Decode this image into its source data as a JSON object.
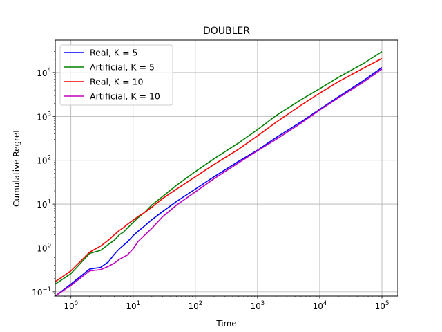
{
  "chart_data": {
    "type": "line",
    "title": "DOUBLER",
    "xlabel": "Time",
    "ylabel": "Cumulative Regret",
    "xscale": "log",
    "yscale": "log",
    "xlim": [
      0.56,
      180000
    ],
    "ylim": [
      0.08,
      55000
    ],
    "grid": true,
    "legend_position": "top-left",
    "x_ticks": [
      {
        "value": 1,
        "base": "10",
        "exp": "0"
      },
      {
        "value": 10,
        "base": "10",
        "exp": "1"
      },
      {
        "value": 100,
        "base": "10",
        "exp": "2"
      },
      {
        "value": 1000,
        "base": "10",
        "exp": "3"
      },
      {
        "value": 10000,
        "base": "10",
        "exp": "4"
      },
      {
        "value": 100000,
        "base": "10",
        "exp": "5"
      }
    ],
    "y_ticks": [
      {
        "value": 0.1,
        "base": "10",
        "exp": "−1"
      },
      {
        "value": 1,
        "base": "10",
        "exp": "0"
      },
      {
        "value": 10,
        "base": "10",
        "exp": "1"
      },
      {
        "value": 100,
        "base": "10",
        "exp": "2"
      },
      {
        "value": 1000,
        "base": "10",
        "exp": "3"
      },
      {
        "value": 10000,
        "base": "10",
        "exp": "4"
      }
    ],
    "series": [
      {
        "name": "Real, K = 5",
        "color": "#0000ff",
        "x": [
          0.56,
          1,
          2,
          3,
          4,
          5,
          6,
          7,
          8,
          10,
          12,
          15,
          20,
          30,
          50,
          100,
          200,
          500,
          1000,
          2000,
          5000,
          10000,
          20000,
          50000,
          100000
        ],
        "y": [
          0.08,
          0.15,
          0.33,
          0.36,
          0.48,
          0.72,
          0.95,
          1.15,
          1.35,
          1.9,
          2.4,
          3.1,
          4.4,
          6.8,
          11.5,
          22,
          42,
          95,
          170,
          330,
          750,
          1450,
          2800,
          6500,
          13000
        ]
      },
      {
        "name": "Artificial, K = 5",
        "color": "#008000",
        "x": [
          0.56,
          1,
          2,
          3,
          4,
          5,
          6,
          7,
          8,
          10,
          12,
          15,
          20,
          30,
          50,
          100,
          200,
          500,
          1000,
          2000,
          5000,
          10000,
          20000,
          50000,
          100000
        ],
        "y": [
          0.15,
          0.26,
          0.75,
          0.88,
          1.2,
          1.5,
          2.0,
          2.3,
          2.8,
          3.8,
          4.9,
          6.3,
          9.5,
          15,
          27,
          55,
          108,
          250,
          500,
          1050,
          2400,
          4300,
          7800,
          16000,
          30000
        ]
      },
      {
        "name": "Real, K = 10",
        "color": "#ff0000",
        "x": [
          0.56,
          1,
          2,
          3,
          4,
          5,
          6,
          7,
          8,
          10,
          12,
          15,
          20,
          30,
          50,
          100,
          200,
          500,
          1000,
          2000,
          5000,
          10000,
          20000,
          50000,
          100000
        ],
        "y": [
          0.17,
          0.3,
          0.8,
          1.1,
          1.5,
          2.0,
          2.5,
          2.9,
          3.4,
          4.3,
          5.2,
          6.3,
          8.5,
          13.5,
          22,
          42,
          80,
          180,
          360,
          740,
          1800,
          3400,
          6200,
          12500,
          21000
        ]
      },
      {
        "name": "Artificial, K = 10",
        "color": "#bf00bf",
        "x": [
          0.56,
          1,
          2,
          3,
          4,
          5,
          6,
          7,
          8,
          10,
          12,
          15,
          20,
          30,
          50,
          100,
          200,
          500,
          1000,
          2000,
          5000,
          10000,
          20000,
          50000,
          100000
        ],
        "y": [
          0.08,
          0.14,
          0.3,
          0.32,
          0.38,
          0.45,
          0.55,
          0.62,
          0.68,
          0.95,
          1.4,
          1.9,
          2.8,
          5.2,
          9.5,
          19,
          38,
          88,
          165,
          300,
          700,
          1400,
          2650,
          6000,
          12000
        ]
      }
    ]
  }
}
